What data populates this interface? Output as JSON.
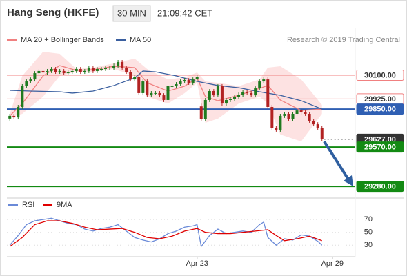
{
  "chart_data": [
    {
      "type": "candlestick",
      "title": "Hang Seng (HKFE)",
      "subtitle": "30 MIN",
      "time": "21:09:42 CET",
      "source": "Research © 2019 Trading Central",
      "up_color": "#1f7a1f",
      "down_color": "#b22222",
      "xlim": [
        -0.7,
        83
      ],
      "ylim": [
        29204,
        30375
      ],
      "open": [
        29780,
        29800,
        29789,
        29866,
        30019,
        30054,
        30069,
        30115,
        30131,
        30120,
        30131,
        30146,
        30125,
        30131,
        30115,
        30125,
        30131,
        30146,
        30125,
        30131,
        30151,
        30131,
        30146,
        30146,
        30151,
        30156,
        30171,
        30197,
        30156,
        30125,
        30069,
        30085,
        29968,
        30054,
        29952,
        29968,
        29968,
        29952,
        29917,
        30019,
        30019,
        30034,
        30054,
        30064,
        30044,
        30069,
        29870,
        29779,
        29917,
        29983,
        29952,
        30019,
        29891,
        29917,
        29927,
        29942,
        29957,
        29978,
        29968,
        29952,
        30003,
        30054,
        30069,
        29866,
        29713,
        29698,
        29800,
        29815,
        29779,
        29815,
        29840,
        29825,
        29815,
        29764,
        29738,
        29713
      ],
      "high": [
        29815,
        29815,
        29881,
        30034,
        30069,
        30084,
        30130,
        30146,
        30146,
        30146,
        30161,
        30161,
        30146,
        30146,
        30140,
        30146,
        30161,
        30161,
        30146,
        30166,
        30166,
        30161,
        30161,
        30166,
        30171,
        30186,
        30212,
        30212,
        30171,
        30140,
        30100,
        30100,
        30069,
        30069,
        29983,
        29983,
        29983,
        29967,
        30034,
        30034,
        30049,
        30069,
        30079,
        30079,
        30084,
        30100,
        29890,
        29932,
        29998,
        29998,
        30034,
        30034,
        29932,
        29942,
        29957,
        29972,
        29993,
        29993,
        29983,
        30018,
        30069,
        30084,
        30084,
        29881,
        29728,
        29815,
        29830,
        29830,
        29830,
        29855,
        29855,
        29840,
        29830,
        29779,
        29753,
        29728
      ],
      "low": [
        29765,
        29774,
        29774,
        29851,
        30004,
        30039,
        30054,
        30100,
        30105,
        30105,
        30116,
        30110,
        30110,
        30100,
        30100,
        30110,
        30116,
        30110,
        30110,
        30116,
        30116,
        30116,
        30131,
        30131,
        30136,
        30141,
        30156,
        30141,
        30110,
        30054,
        30054,
        29953,
        29953,
        29937,
        29937,
        29953,
        29937,
        29902,
        29902,
        30004,
        30004,
        30019,
        30039,
        30029,
        30029,
        30054,
        29764,
        29764,
        29902,
        29937,
        29937,
        29876,
        29876,
        29902,
        29912,
        29927,
        29942,
        29953,
        29937,
        29937,
        29988,
        30039,
        29851,
        29698,
        29683,
        29683,
        29785,
        29764,
        29764,
        29800,
        29810,
        29800,
        29749,
        29723,
        29698,
        29612
      ],
      "close": [
        29800,
        29789,
        29866,
        30019,
        30054,
        30069,
        30115,
        30131,
        30120,
        30131,
        30146,
        30125,
        30131,
        30115,
        30125,
        30131,
        30146,
        30125,
        30131,
        30151,
        30131,
        30146,
        30146,
        30151,
        30156,
        30171,
        30197,
        30156,
        30125,
        30069,
        30085,
        29968,
        30054,
        29952,
        29968,
        29968,
        29952,
        29917,
        30019,
        30019,
        30034,
        30054,
        30064,
        30044,
        30069,
        30085,
        29779,
        29917,
        29983,
        29952,
        30019,
        29891,
        29917,
        29927,
        29942,
        29957,
        29978,
        29968,
        29952,
        30003,
        30054,
        30069,
        29866,
        29713,
        29698,
        29800,
        29815,
        29779,
        29815,
        29840,
        29825,
        29815,
        29764,
        29738,
        29713,
        29627
      ],
      "series": [
        {
          "name": "MA 20 + Bollinger Bands",
          "color": "#f08080",
          "band_color": "#fcd6d6",
          "x": [
            0,
            3,
            8,
            12,
            16,
            20,
            25,
            30,
            33,
            38,
            42,
            45,
            47,
            50,
            55,
            60,
            62,
            65,
            70,
            75
          ],
          "values": [
            29800,
            29891,
            30095,
            30171,
            30136,
            30141,
            30166,
            30156,
            30044,
            29983,
            30019,
            30080,
            29942,
            29912,
            29952,
            30003,
            30024,
            29917,
            29840,
            29850
          ],
          "upper": [
            29815,
            30095,
            30273,
            30258,
            30146,
            30156,
            30187,
            30222,
            30146,
            30069,
            30085,
            30120,
            30054,
            30044,
            30019,
            30069,
            30156,
            30166,
            30069,
            29881
          ],
          "lower": [
            29789,
            29815,
            29942,
            30095,
            30125,
            30125,
            30146,
            30095,
            29942,
            29891,
            29968,
            30044,
            29749,
            29779,
            29891,
            29942,
            29891,
            29662,
            29611,
            29815
          ]
        },
        {
          "name": "MA 50",
          "color": "#3a5f9f",
          "x": [
            0,
            5,
            12,
            15,
            20,
            25,
            30,
            32,
            35,
            40,
            45,
            50,
            55,
            60,
            65,
            70,
            75
          ],
          "values": [
            29988,
            29983,
            29978,
            29968,
            29983,
            30024,
            30080,
            30131,
            30125,
            30095,
            30054,
            30024,
            30008,
            29978,
            29952,
            29912,
            29850
          ]
        }
      ],
      "levels": [
        {
          "value": 30100,
          "label": "30100.00",
          "color": "#f08080",
          "filled": false,
          "dashed": false
        },
        {
          "value": 29925,
          "label": "29925.00",
          "color": "#f08080",
          "filled": false,
          "dashed": false
        },
        {
          "value": 29850,
          "label": "29850.00",
          "color": "#2f5fb3",
          "filled": true,
          "dashed": false
        },
        {
          "value": 29627,
          "label": "29627.00",
          "color": "#333333",
          "filled": true,
          "dashed": true
        },
        {
          "value": 29570,
          "label": "29570.00",
          "color": "#138a13",
          "filled": true,
          "dashed": false
        },
        {
          "value": 29280,
          "label": "29280.00",
          "color": "#138a13",
          "filled": true,
          "dashed": false
        }
      ]
    },
    {
      "type": "line",
      "xlim": [
        -0.7,
        83
      ],
      "ylim": [
        12,
        89.5
      ],
      "yticks": [
        30,
        50,
        70
      ],
      "grid": true,
      "xticks": [
        {
          "value": 45,
          "label": "Apr 23"
        },
        {
          "value": 77.5,
          "label": "Apr 29"
        }
      ],
      "series": [
        {
          "name": "RSI",
          "color": "#6a8ad8",
          "x": [
            0,
            2,
            4,
            6,
            8,
            10,
            12,
            14,
            16,
            18,
            20,
            22,
            24,
            26,
            28,
            30,
            32,
            34,
            36,
            38,
            40,
            42,
            44,
            45,
            46,
            48,
            50,
            52,
            54,
            56,
            58,
            60,
            61,
            62,
            64,
            66,
            68,
            70,
            72,
            74,
            75
          ],
          "values": [
            30,
            45,
            62,
            68,
            70,
            72,
            68,
            64,
            62,
            55,
            52,
            56,
            58,
            62,
            52,
            42,
            38,
            35,
            40,
            48,
            52,
            58,
            60,
            62,
            28,
            45,
            55,
            48,
            50,
            52,
            50,
            62,
            66,
            42,
            30,
            40,
            38,
            46,
            44,
            36,
            30
          ]
        },
        {
          "name": "9MA",
          "color": "#e00000",
          "x": [
            0,
            3,
            6,
            9,
            12,
            15,
            18,
            21,
            24,
            27,
            30,
            33,
            36,
            39,
            42,
            45,
            47,
            50,
            53,
            56,
            59,
            62,
            64,
            66,
            69,
            72,
            75
          ],
          "values": [
            28,
            42,
            62,
            68,
            68,
            64,
            58,
            54,
            55,
            56,
            50,
            42,
            40,
            44,
            52,
            56,
            50,
            48,
            48,
            50,
            52,
            54,
            45,
            37,
            40,
            44,
            37
          ]
        }
      ]
    }
  ]
}
